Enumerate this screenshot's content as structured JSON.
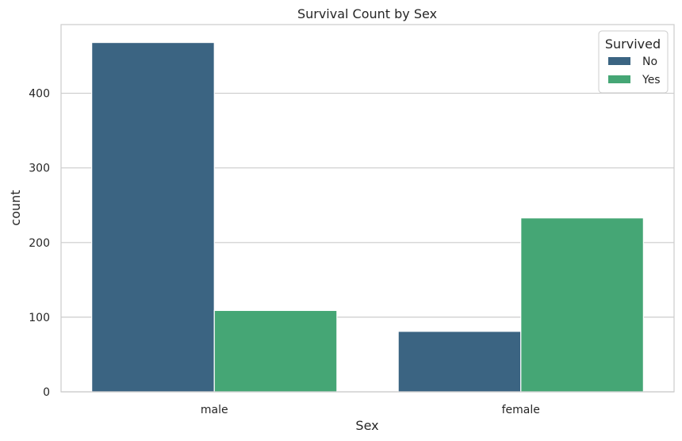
{
  "chart_data": {
    "type": "bar",
    "title": "Survival Count by Sex",
    "xlabel": "Sex",
    "ylabel": "count",
    "categories": [
      "male",
      "female"
    ],
    "series": [
      {
        "name": "No",
        "values": [
          468,
          81
        ],
        "color": "#3b6482"
      },
      {
        "name": "Yes",
        "values": [
          109,
          233
        ],
        "color": "#45a675"
      }
    ],
    "ylim": [
      0,
      492
    ],
    "yticks": [
      0,
      100,
      200,
      300,
      400
    ],
    "grid": true,
    "legend": {
      "title": "Survived",
      "placement": "top-right"
    }
  }
}
